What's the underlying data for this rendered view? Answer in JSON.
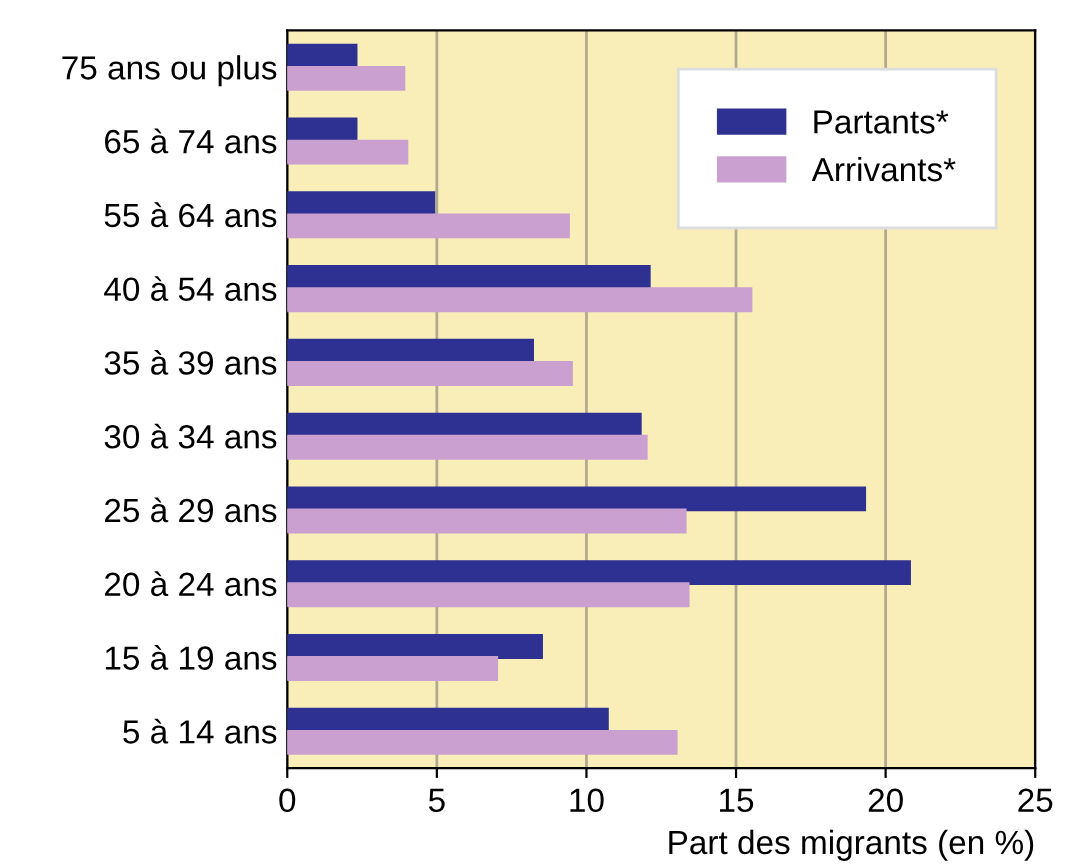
{
  "chart_data": {
    "type": "bar",
    "orientation": "horizontal",
    "xlabel": "Part des migrants (en %)",
    "categories": [
      "75 ans ou plus",
      "65 à 74 ans",
      "55 à 64 ans",
      "40 à 54 ans",
      "35 à 39 ans",
      "30 à 34 ans",
      "25 à 29 ans",
      "20 à 24 ans",
      "15 à 19 ans",
      "5 à 14 ans"
    ],
    "series": [
      {
        "name": "Partants*",
        "color": "#2e3192",
        "values": [
          2.3,
          2.3,
          4.9,
          12.1,
          8.2,
          11.8,
          19.3,
          20.8,
          8.5,
          10.7
        ]
      },
      {
        "name": "Arrivants*",
        "color": "#c9a0d0",
        "values": [
          3.9,
          4.0,
          9.4,
          15.5,
          9.5,
          12.0,
          13.3,
          13.4,
          7.0,
          13.0
        ]
      }
    ],
    "xlim": [
      0,
      25
    ],
    "xticks": [
      0,
      5,
      10,
      15,
      20,
      25
    ],
    "grid": "x",
    "legend": "top right"
  }
}
